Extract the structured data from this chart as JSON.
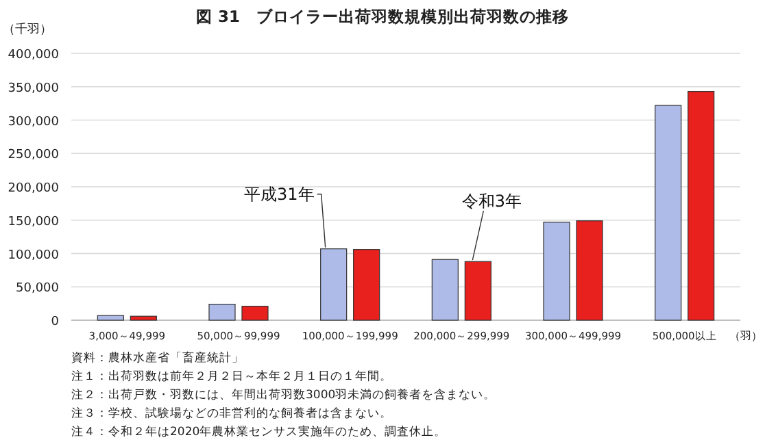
{
  "chart_data": {
    "type": "bar",
    "title": "図 31　ブロイラー出荷羽数規模別出荷羽数の推移",
    "ylabel": "（千羽）",
    "xlabel": "（羽）",
    "categories": [
      "3,000～49,999",
      "50,000～99,999",
      "100,000～199,999",
      "200,000～299,999",
      "300,000～499,999",
      "500,000以上"
    ],
    "series": [
      {
        "name": "平成31年",
        "color": "#aebbe8",
        "values": [
          7000,
          24000,
          107000,
          91000,
          147000,
          322000
        ]
      },
      {
        "name": "令和3年",
        "color": "#e8201e",
        "values": [
          6000,
          21000,
          106000,
          88000,
          149000,
          343000
        ]
      }
    ],
    "ylim": [
      0,
      400000
    ],
    "yticks": [
      {
        "value": 0,
        "label": "0"
      },
      {
        "value": 50000,
        "label": "50,000"
      },
      {
        "value": 100000,
        "label": "100,000"
      },
      {
        "value": 150000,
        "label": "150,000"
      },
      {
        "value": 200000,
        "label": "200,000"
      },
      {
        "value": 250000,
        "label": "250,000"
      },
      {
        "value": 300000,
        "label": "300,000"
      },
      {
        "value": 350000,
        "label": "350,000"
      },
      {
        "value": 400000,
        "label": "400,000"
      }
    ],
    "grid": "y",
    "legend": false,
    "annotations": [
      "資料：農林水産省「畜産統計」",
      "注１：出荷羽数は前年２月２日～本年２月１日の１年間。",
      "注２：出荷戸数・羽数には、年間出荷羽数3000羽未満の飼養者を含まない。",
      "注３：学校、試験場などの非営利的な飼養者は含まない。",
      "注４：令和２年は2020年農林業センサス実施年のため、調査休止。"
    ]
  }
}
